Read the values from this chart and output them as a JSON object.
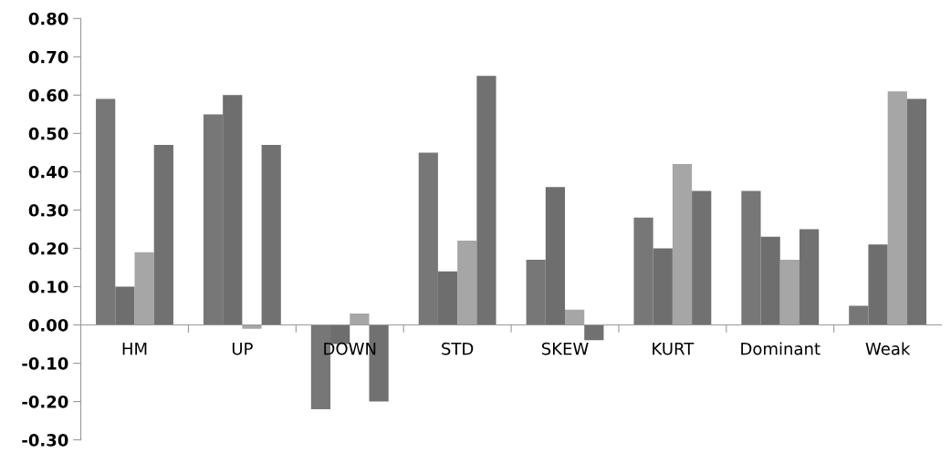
{
  "chart_data": {
    "type": "bar",
    "categories": [
      "HM",
      "UP",
      "DOWN",
      "STD",
      "SKEW",
      "KURT",
      "Dominant",
      "Weak"
    ],
    "series": [
      {
        "color": "#777777",
        "values": [
          0.59,
          0.55,
          -0.22,
          0.45,
          0.17,
          0.28,
          0.35,
          0.05
        ]
      },
      {
        "color": "#6e6e6e",
        "values": [
          0.1,
          0.6,
          -0.05,
          0.14,
          0.36,
          0.2,
          0.23,
          0.21
        ]
      },
      {
        "color": "#a6a6a6",
        "values": [
          0.19,
          -0.01,
          0.03,
          0.22,
          0.04,
          0.42,
          0.17,
          0.61
        ]
      },
      {
        "color": "#717171",
        "values": [
          0.47,
          0.47,
          -0.2,
          0.65,
          -0.04,
          0.35,
          0.25,
          0.59
        ]
      }
    ],
    "ylim": [
      -0.3,
      0.8
    ],
    "yticks": [
      {
        "value": -0.3,
        "label": "-0.30"
      },
      {
        "value": -0.2,
        "label": "-0.20"
      },
      {
        "value": -0.1,
        "label": "-0.10"
      },
      {
        "value": 0,
        "label": "0.00"
      },
      {
        "value": 0.1,
        "label": "0.10"
      },
      {
        "value": 0.2,
        "label": "0.20"
      },
      {
        "value": 0.3,
        "label": "0.30"
      },
      {
        "value": 0.4,
        "label": "0.40"
      },
      {
        "value": 0.5,
        "label": "0.50"
      },
      {
        "value": 0.6,
        "label": "0.60"
      },
      {
        "value": 0.7,
        "label": "0.70"
      },
      {
        "value": 0.8,
        "label": "0.80"
      }
    ],
    "grid": false
  }
}
